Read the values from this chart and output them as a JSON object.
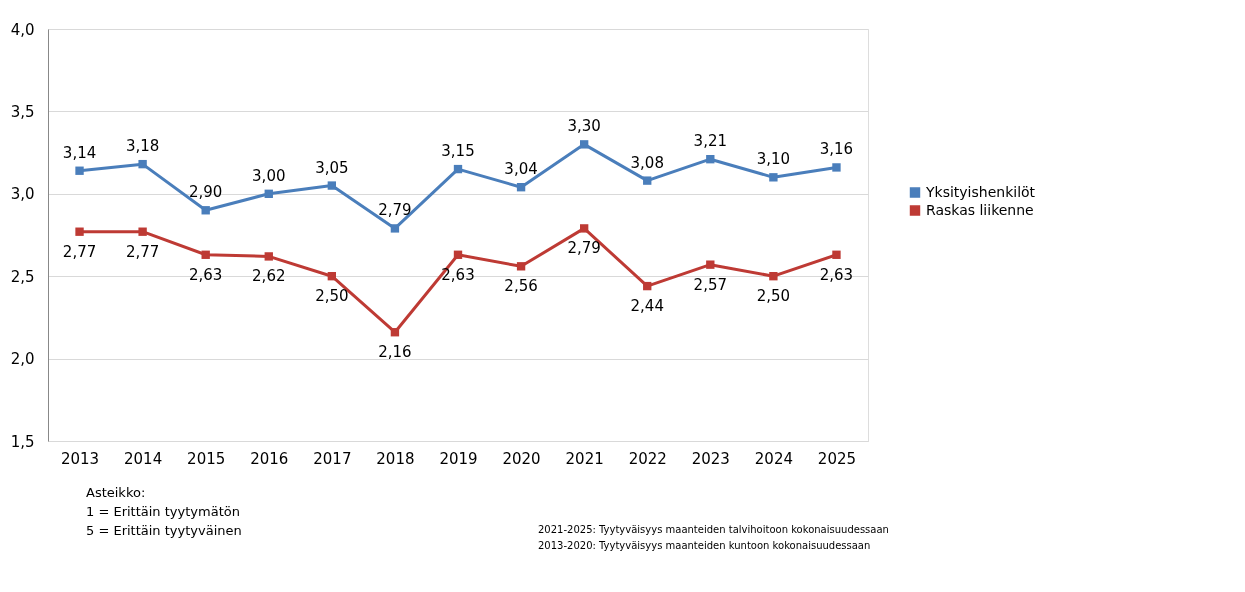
{
  "chart_data": {
    "type": "line",
    "categories": [
      "2013",
      "2014",
      "2015",
      "2016",
      "2017",
      "2018",
      "2019",
      "2020",
      "2021",
      "2022",
      "2023",
      "2024",
      "2025"
    ],
    "series": [
      {
        "name": "Yksityishenkilöt",
        "color": "#4a7ebb",
        "values": [
          3.14,
          3.18,
          2.9,
          3.0,
          3.05,
          2.79,
          3.15,
          3.04,
          3.3,
          3.08,
          3.21,
          3.1,
          3.16
        ],
        "value_labels": [
          "3,14",
          "3,18",
          "2,90",
          "3,00",
          "3,05",
          "2,79",
          "3,15",
          "3,04",
          "3,30",
          "3,08",
          "3,21",
          "3,10",
          "3,16"
        ]
      },
      {
        "name": "Raskas liikenne",
        "color": "#be3a34",
        "values": [
          2.77,
          2.77,
          2.63,
          2.62,
          2.5,
          2.16,
          2.63,
          2.56,
          2.79,
          2.44,
          2.57,
          2.5,
          2.63
        ],
        "value_labels": [
          "2,77",
          "2,77",
          "2,63",
          "2,62",
          "2,50",
          "2,16",
          "2,63",
          "2,56",
          "2,79",
          "2,44",
          "2,57",
          "2,50",
          "2,63"
        ]
      }
    ],
    "ylim": [
      1.5,
      4.0
    ],
    "yticks": [
      {
        "value": 1.5,
        "label": "1,5"
      },
      {
        "value": 2.0,
        "label": "2,0"
      },
      {
        "value": 2.5,
        "label": "2,5"
      },
      {
        "value": 3.0,
        "label": "3,0"
      },
      {
        "value": 3.5,
        "label": "3,5"
      },
      {
        "value": 4.0,
        "label": "4,0"
      }
    ],
    "grid": "y",
    "legend": "right",
    "marker": "square",
    "line_style": "solid",
    "annotations": [
      "Asteikko:",
      "1 = Erittäin tyytymätön",
      "5 = Erittäin tyytyväinen",
      "2021-2025: Tyytyväisyys  maanteiden talvihoitoon kokonaisuudessaan",
      "2013-2020: Tyytyväisyys  maanteiden kuntoon kokonaisuudessaan"
    ]
  }
}
